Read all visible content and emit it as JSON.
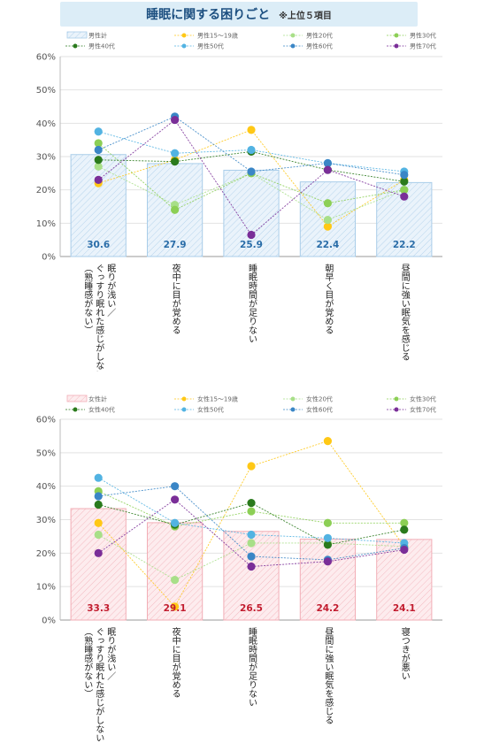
{
  "title": "睡眠に関する困りごと",
  "title_note": "※上位５項目",
  "chart_data": [
    {
      "type": "bar",
      "id": "male",
      "ylim": [
        0,
        60
      ],
      "yticks": [
        "0%",
        "10%",
        "20%",
        "30%",
        "40%",
        "50%",
        "60%"
      ],
      "bar_series": {
        "name": "男性計",
        "color": "#a9cde9",
        "fill": "#eaf3fb",
        "label_color": "#2a6da8",
        "labels": [
          "30.6",
          "27.9",
          "25.9",
          "22.4",
          "22.2"
        ],
        "values": [
          30.6,
          27.9,
          25.9,
          22.4,
          22.2
        ]
      },
      "categories": [
        "眠りが浅い／ぐっすり眠れた感じがしない（熟睡感がない）",
        "夜中に目が覚める",
        "睡眠時間が足りない",
        "朝早く目が覚める",
        "昼間に強い眠気を感じる"
      ],
      "category_lines": [
        [
          "眠りが浅い／",
          "ぐっすり眠れた感じがしない",
          "（熟睡感がない）"
        ],
        [
          "夜中に目が覚める"
        ],
        [
          "睡眠時間が足りない"
        ],
        [
          "朝早く目が覚める"
        ],
        [
          "昼間に強い眠気を感じる"
        ]
      ],
      "series": [
        {
          "name": "男性15～19歳",
          "color": "#ffc815",
          "values": [
            22,
            29,
            38,
            9,
            23
          ]
        },
        {
          "name": "男性20代",
          "color": "#a8df88",
          "values": [
            27,
            15.5,
            25,
            11,
            20
          ]
        },
        {
          "name": "男性30代",
          "color": "#8ccf55",
          "values": [
            34,
            14,
            25,
            16,
            20
          ]
        },
        {
          "name": "男性40代",
          "color": "#2a7a1c",
          "values": [
            29,
            28.5,
            31.5,
            26,
            22.5
          ]
        },
        {
          "name": "男性50代",
          "color": "#52b3e2",
          "values": [
            37.5,
            31,
            32,
            28,
            25.5
          ]
        },
        {
          "name": "男性60代",
          "color": "#3a86c6",
          "values": [
            32,
            42,
            25.5,
            28,
            24.5
          ]
        },
        {
          "name": "男性70代",
          "color": "#7a2e98",
          "values": [
            23,
            41,
            6.5,
            26,
            18
          ]
        }
      ]
    },
    {
      "type": "bar",
      "id": "female",
      "ylim": [
        0,
        60
      ],
      "yticks": [
        "0%",
        "10%",
        "20%",
        "30%",
        "40%",
        "50%",
        "60%"
      ],
      "bar_series": {
        "name": "女性計",
        "color": "#f2aeb6",
        "fill": "#fdecee",
        "label_color": "#c21d2f",
        "labels": [
          "33.3",
          "29.1",
          "26.5",
          "24.2",
          "24.1"
        ],
        "values": [
          33.3,
          29.1,
          26.5,
          24.2,
          24.1
        ]
      },
      "categories": [
        "眠りが浅い／ぐっすり眠れた感じがしない（熟睡感がない）",
        "夜中に目が覚める",
        "睡眠時間が足りない",
        "昼間に強い眠気を感じる",
        "寝つきが悪い"
      ],
      "category_lines": [
        [
          "眠りが浅い／",
          "ぐっすり眠れた感じがしない",
          "（熟睡感がない）"
        ],
        [
          "夜中に目が覚める"
        ],
        [
          "睡眠時間が足りない"
        ],
        [
          "昼間に強い眠気を感じる"
        ],
        [
          "寝つきが悪い"
        ]
      ],
      "series": [
        {
          "name": "女性15～19歳",
          "color": "#ffc815",
          "values": [
            29,
            4,
            46,
            53.5,
            22
          ]
        },
        {
          "name": "女性20代",
          "color": "#a8df88",
          "values": [
            25.5,
            12,
            23,
            23,
            22
          ]
        },
        {
          "name": "女性30代",
          "color": "#8ccf55",
          "values": [
            38.5,
            28,
            32.5,
            29,
            29
          ]
        },
        {
          "name": "女性40代",
          "color": "#2a7a1c",
          "values": [
            34.5,
            28.5,
            35,
            22.5,
            27
          ]
        },
        {
          "name": "女性50代",
          "color": "#52b3e2",
          "values": [
            42.5,
            29,
            25.5,
            24.5,
            23
          ]
        },
        {
          "name": "女性60代",
          "color": "#3a86c6",
          "values": [
            37,
            40,
            19,
            18,
            21.5
          ]
        },
        {
          "name": "女性70代",
          "color": "#7a2e98",
          "values": [
            20,
            36,
            16,
            17.5,
            21
          ]
        }
      ]
    }
  ]
}
